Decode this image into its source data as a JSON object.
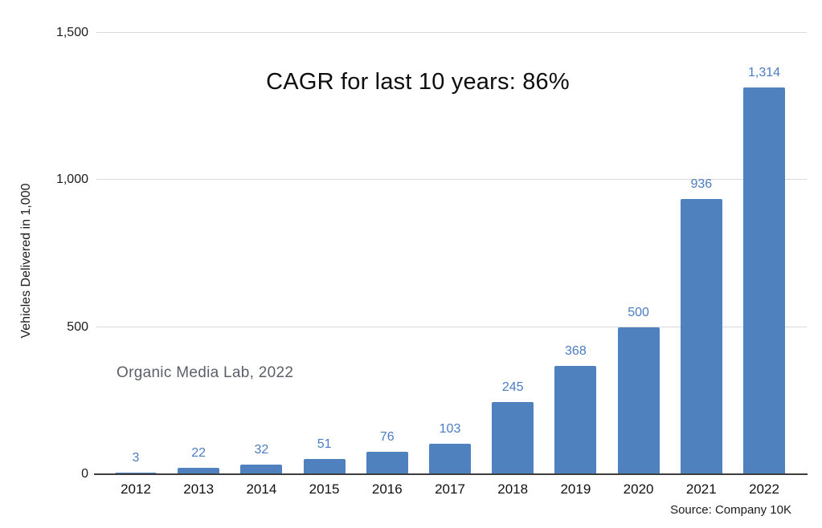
{
  "chart_data": {
    "type": "bar",
    "title": "CAGR for last 10 years: 86%",
    "ylabel": "Vehicles Delivered in 1,000",
    "xlabel": "",
    "categories": [
      "2012",
      "2013",
      "2014",
      "2015",
      "2016",
      "2017",
      "2018",
      "2019",
      "2020",
      "2021",
      "2022"
    ],
    "values": [
      3,
      22,
      32,
      51,
      76,
      103,
      245,
      368,
      500,
      936,
      1314
    ],
    "value_labels": [
      "3",
      "22",
      "32",
      "51",
      "76",
      "103",
      "245",
      "368",
      "500",
      "936",
      "1,314"
    ],
    "ylim": [
      0,
      1500
    ],
    "yticks": [
      {
        "value": 0,
        "label": "0"
      },
      {
        "value": 500,
        "label": "500"
      },
      {
        "value": 1000,
        "label": "1,000"
      },
      {
        "value": 1500,
        "label": "1,500"
      }
    ],
    "grid": "horizontal",
    "legend_position": "none",
    "bar_color": "#4e81bd",
    "value_label_color": "#4a7cc4",
    "gridline_color": "#d9d9d9",
    "axis_line_color": "#3d3d3d"
  },
  "annotations": {
    "watermark": "Organic Media Lab, 2022",
    "source": "Source: Company 10K"
  }
}
